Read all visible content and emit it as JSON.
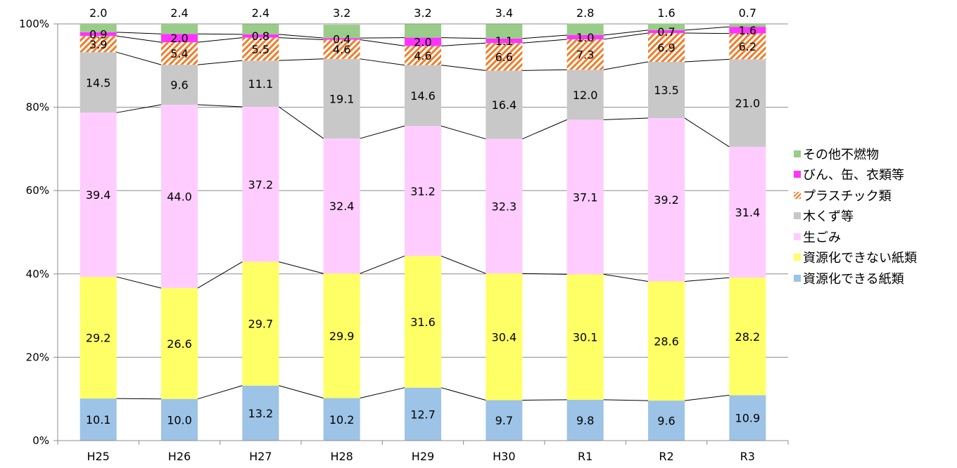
{
  "chart_data": {
    "type": "bar",
    "stacked": true,
    "percent_stacked": true,
    "categories": [
      "H25",
      "H26",
      "H27",
      "H28",
      "H29",
      "H30",
      "R1",
      "R2",
      "R3"
    ],
    "y_ticks": [
      "0%",
      "20%",
      "40%",
      "60%",
      "80%",
      "100%"
    ],
    "ylim": [
      0,
      100
    ],
    "grid": true,
    "legend_position": "right",
    "series_lines": true,
    "series": [
      {
        "name": "資源化できる紙類",
        "color": "#9dc3e6",
        "values": [
          10.1,
          10.0,
          13.2,
          10.2,
          12.7,
          9.7,
          9.8,
          9.6,
          10.9
        ],
        "labels": [
          "10.1",
          "10.0",
          "13.2",
          "10.2",
          "12.7",
          "9.7",
          "9.8",
          "9.6",
          "10.9"
        ]
      },
      {
        "name": "資源化できない紙類",
        "color": "#ffff66",
        "values": [
          29.2,
          26.6,
          29.7,
          29.9,
          31.6,
          30.4,
          30.1,
          28.6,
          28.2
        ],
        "labels": [
          "29.2",
          "26.6",
          "29.7",
          "29.9",
          "31.6",
          "30.4",
          "30.1",
          "28.6",
          "28.2"
        ]
      },
      {
        "name": "生ごみ",
        "color": "#ffccff",
        "values": [
          39.4,
          44.0,
          37.2,
          32.4,
          31.2,
          32.3,
          37.1,
          39.2,
          31.4
        ],
        "labels": [
          "39.4",
          "44.0",
          "37.2",
          "32.4",
          "31.2",
          "32.3",
          "37.1",
          "39.2",
          "31.4"
        ]
      },
      {
        "name": "木くず等",
        "color": "#c8c8c8",
        "values": [
          14.5,
          9.6,
          11.1,
          19.1,
          14.6,
          16.4,
          12.0,
          13.5,
          21.0
        ],
        "labels": [
          "14.5",
          "9.6",
          "11.1",
          "19.1",
          "14.6",
          "16.4",
          "12.0",
          "13.5",
          "21.0"
        ]
      },
      {
        "name": "プラスチック類",
        "color": "#f07c28",
        "pattern": "hatch",
        "values": [
          3.9,
          5.4,
          5.5,
          4.6,
          4.6,
          6.6,
          7.3,
          6.9,
          6.2
        ],
        "labels": [
          "3.9",
          "5.4",
          "5.5",
          "4.6",
          "4.6",
          "6.6",
          "7.3",
          "6.9",
          "6.2"
        ]
      },
      {
        "name": "びん、缶、衣類等",
        "color": "#ff33ff",
        "values": [
          0.9,
          2.0,
          0.8,
          0.4,
          2.0,
          1.1,
          1.0,
          0.7,
          1.6
        ],
        "labels": [
          "0.9",
          "2.0",
          "0.8",
          "0.4",
          "2.0",
          "1.1",
          "1.0",
          "0.7",
          "1.6"
        ]
      },
      {
        "name": "その他不燃物",
        "color": "#99cc88",
        "values": [
          2.0,
          2.4,
          2.4,
          3.2,
          3.2,
          3.4,
          2.8,
          1.6,
          0.7
        ],
        "labels": [
          "2.0",
          "2.4",
          "2.4",
          "3.2",
          "3.2",
          "3.4",
          "2.8",
          "1.6",
          "0.7"
        ]
      }
    ],
    "legend_order": [
      "その他不燃物",
      "びん、缶、衣類等",
      "プラスチック類",
      "木くず等",
      "生ごみ",
      "資源化できない紙類",
      "資源化できる紙類"
    ]
  }
}
